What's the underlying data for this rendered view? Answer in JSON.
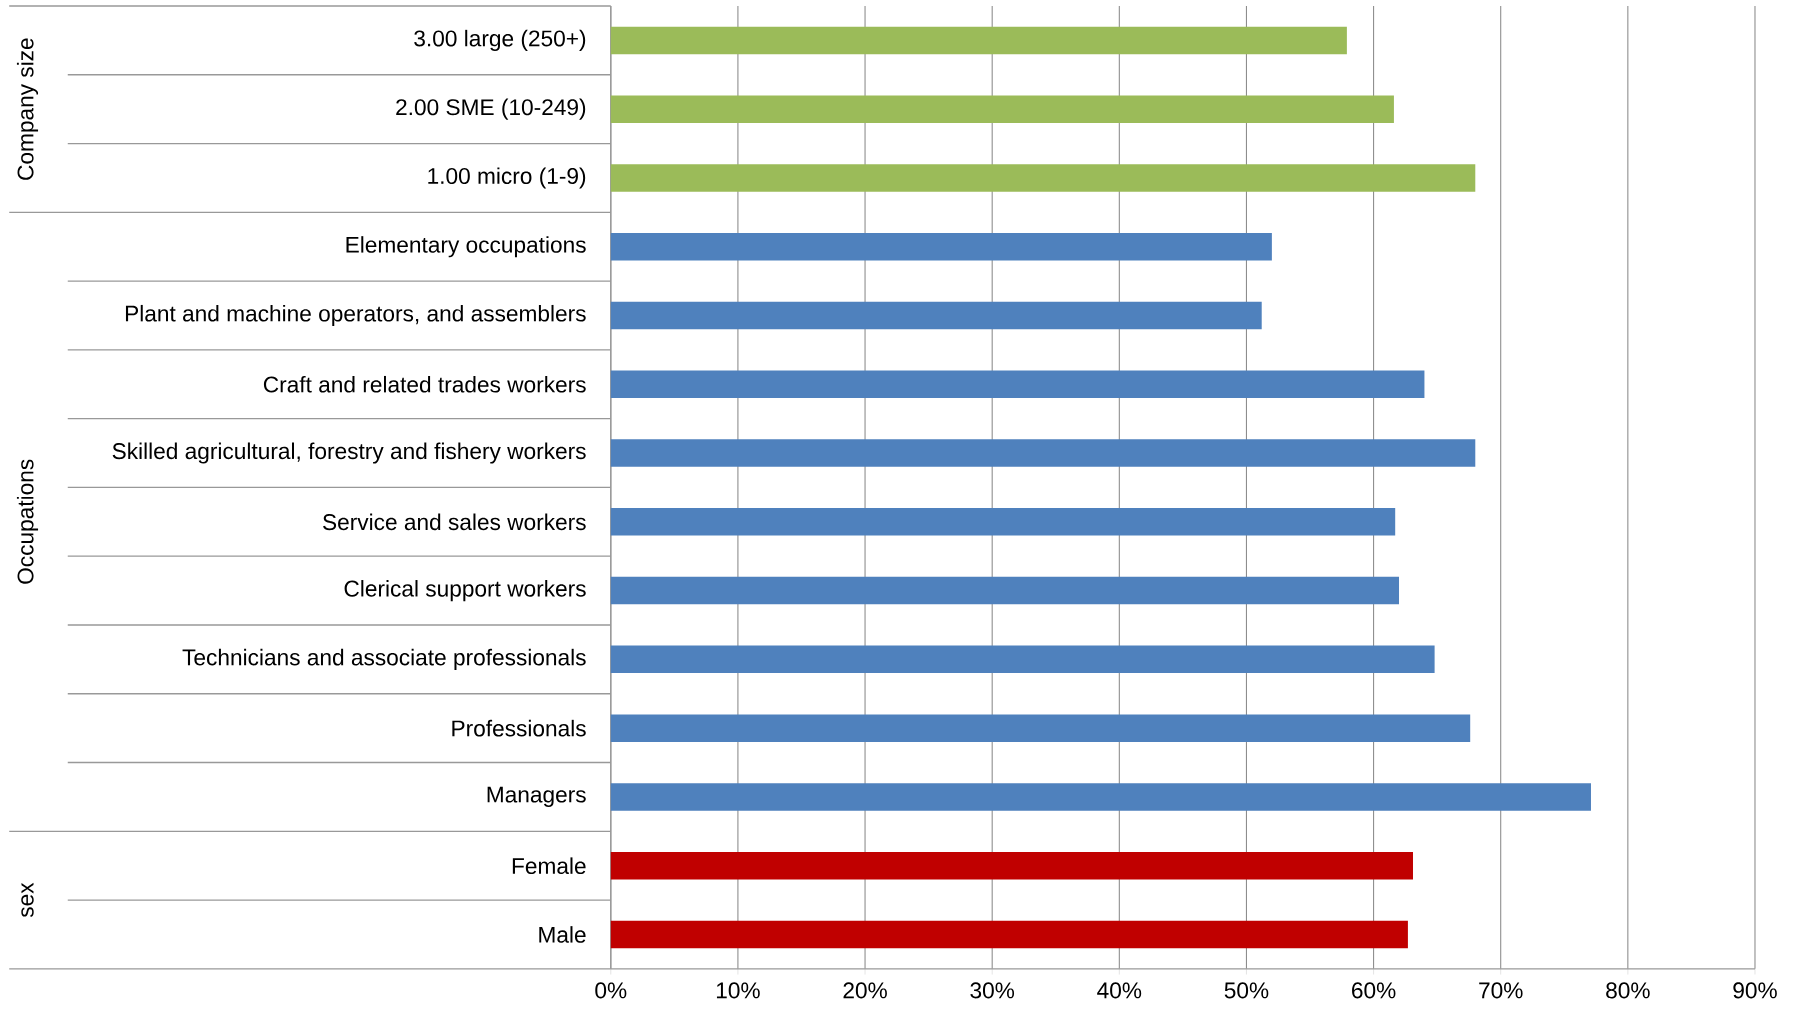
{
  "chart_data": {
    "type": "bar",
    "orientation": "horizontal",
    "categories": [
      "3.00 large (250+)",
      "2.00 SME (10-249)",
      "1.00 micro (1-9)",
      "Elementary occupations",
      "Plant and machine operators, and assemblers",
      "Craft and related trades workers",
      "Skilled agricultural, forestry and fishery workers",
      "Service and sales workers",
      "Clerical support workers",
      "Technicians and associate professionals",
      "Professionals",
      "Managers",
      "Female",
      "Male"
    ],
    "values": [
      57.9,
      61.6,
      68.0,
      52.0,
      51.2,
      64.0,
      68.0,
      61.7,
      62.0,
      64.8,
      67.6,
      77.1,
      63.1,
      62.7
    ],
    "colors": [
      "#9bbb59",
      "#9bbb59",
      "#9bbb59",
      "#4f81bd",
      "#4f81bd",
      "#4f81bd",
      "#4f81bd",
      "#4f81bd",
      "#4f81bd",
      "#4f81bd",
      "#4f81bd",
      "#4f81bd",
      "#c00000",
      "#c00000"
    ],
    "annotations": [
      "Company size",
      "Occupations",
      "sex"
    ],
    "xlim": [
      0,
      90
    ],
    "xticks": [
      {
        "value": 0,
        "label": "0%"
      },
      {
        "value": 10,
        "label": "10%"
      },
      {
        "value": 20,
        "label": "20%"
      },
      {
        "value": 30,
        "label": "30%"
      },
      {
        "value": 40,
        "label": "40%"
      },
      {
        "value": 50,
        "label": "50%"
      },
      {
        "value": 60,
        "label": "60%"
      },
      {
        "value": 70,
        "label": "70%"
      },
      {
        "value": 80,
        "label": "80%"
      },
      {
        "value": 90,
        "label": "90%"
      }
    ],
    "grid": "x"
  }
}
